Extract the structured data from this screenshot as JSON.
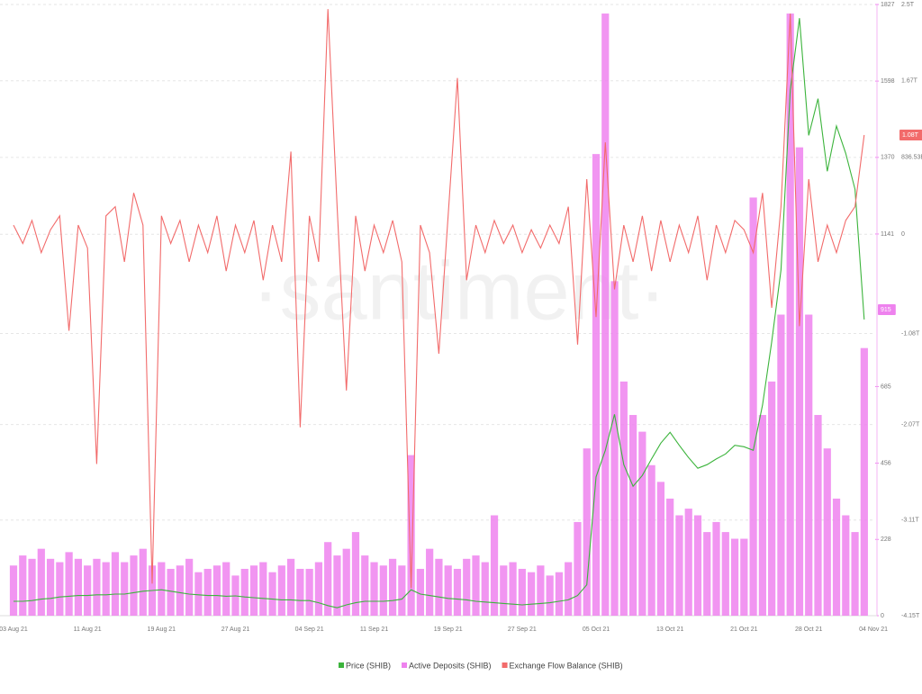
{
  "chart_data": {
    "type": "combo",
    "watermark": "·santiment·",
    "categories": [
      "03 Aug 21",
      null,
      null,
      null,
      null,
      null,
      null,
      null,
      "11 Aug 21",
      null,
      null,
      null,
      null,
      null,
      null,
      null,
      "19 Aug 21",
      null,
      null,
      null,
      null,
      null,
      null,
      null,
      "27 Aug 21",
      null,
      null,
      null,
      null,
      null,
      null,
      null,
      "04 Sep 21",
      null,
      null,
      null,
      null,
      null,
      null,
      "11 Sep 21",
      null,
      null,
      null,
      null,
      null,
      null,
      null,
      "19 Sep 21",
      null,
      null,
      null,
      null,
      null,
      null,
      null,
      "27 Sep 21",
      null,
      null,
      null,
      null,
      null,
      null,
      null,
      "05 Oct 21",
      null,
      null,
      null,
      null,
      null,
      null,
      null,
      "13 Oct 21",
      null,
      null,
      null,
      null,
      null,
      null,
      null,
      "21 Oct 21",
      null,
      null,
      null,
      null,
      null,
      null,
      "28 Oct 21",
      null,
      null,
      null,
      null,
      null,
      null,
      "04 Nov 21"
    ],
    "series": [
      {
        "name": "Price (SHIB)",
        "type": "line",
        "axis": "y3",
        "color": "#3cb43c",
        "values": [
          7e-06,
          7e-06,
          7.1e-06,
          7.3e-06,
          7.4e-06,
          7.6e-06,
          7.7e-06,
          7.8e-06,
          7.8e-06,
          7.9e-06,
          7.9e-06,
          8e-06,
          8e-06,
          8.2e-06,
          8.4e-06,
          8.5e-06,
          8.6e-06,
          8.4e-06,
          8.2e-06,
          8e-06,
          7.9e-06,
          7.8e-06,
          7.8e-06,
          7.7e-06,
          7.75e-06,
          7.6e-06,
          7.5e-06,
          7.4e-06,
          7.3e-06,
          7.2e-06,
          7.2e-06,
          7.1e-06,
          7.1e-06,
          6.8e-06,
          6.4e-06,
          6.1e-06,
          6.5e-06,
          6.8e-06,
          7e-06,
          7e-06,
          7e-06,
          7.1e-06,
          7.3e-06,
          8.6e-06,
          8e-06,
          7.8e-06,
          7.6e-06,
          7.4e-06,
          7.3e-06,
          7.2e-06,
          7e-06,
          6.9e-06,
          6.8e-06,
          6.7e-06,
          6.6e-06,
          6.5e-06,
          6.6e-06,
          6.7e-06,
          6.8e-06,
          7e-06,
          7.2e-06,
          7.8e-06,
          9.3e-06,
          2.43e-05,
          2.8e-05,
          3.3e-05,
          2.6e-05,
          2.3e-05,
          2.45e-05,
          2.68e-05,
          2.9e-05,
          3.05e-05,
          2.87e-05,
          2.7e-05,
          2.55e-05,
          2.6e-05,
          2.68e-05,
          2.75e-05,
          2.87e-05,
          2.85e-05,
          2.8e-05,
          3.43e-05,
          4.31e-05,
          5.31e-05,
          7.81e-05,
          8.81e-05,
          7.18e-05,
          7.69e-05,
          6.68e-05,
          7.31e-05,
          6.93e-05,
          6.43e-05,
          4.62e-05,
          null
        ]
      },
      {
        "name": "Active Deposits (SHIB)",
        "type": "bar",
        "axis": "y",
        "color": "#ee82ee",
        "values": [
          150,
          180,
          170,
          200,
          170,
          160,
          190,
          170,
          150,
          170,
          160,
          190,
          160,
          180,
          200,
          150,
          160,
          140,
          150,
          170,
          130,
          140,
          150,
          160,
          120,
          140,
          150,
          160,
          130,
          150,
          170,
          140,
          140,
          160,
          220,
          180,
          200,
          250,
          180,
          160,
          150,
          170,
          150,
          480,
          140,
          200,
          170,
          150,
          140,
          170,
          180,
          160,
          300,
          150,
          160,
          140,
          130,
          150,
          120,
          130,
          160,
          280,
          500,
          1380,
          1800,
          1000,
          700,
          600,
          550,
          450,
          400,
          350,
          300,
          320,
          300,
          250,
          280,
          250,
          230,
          230,
          1250,
          600,
          700,
          900,
          1800,
          1400,
          900,
          600,
          500,
          350,
          300,
          250,
          800,
          null
        ]
      },
      {
        "name": "Exchange Flow Balance (SHIB)",
        "type": "line",
        "axis": "y2",
        "color": "#f26b6b",
        "values": [
          100000000000.0,
          -100000000000.0,
          150000000000.0,
          -200000000000.0,
          50000000000.0,
          200000000000.0,
          -1050000000000.0,
          100000000000.0,
          -150000000000.0,
          -2500000000000.0,
          200000000000.0,
          300000000000.0,
          -300000000000.0,
          450000000000.0,
          100000000000.0,
          -3800000000000.0,
          200000000000.0,
          -100000000000.0,
          150000000000.0,
          -300000000000.0,
          100000000000.0,
          -200000000000.0,
          200000000000.0,
          -400000000000.0,
          100000000000.0,
          -200000000000.0,
          150000000000.0,
          -500000000000.0,
          100000000000.0,
          -300000000000.0,
          900000000000.0,
          -2100000000000.0,
          200000000000.0,
          -300000000000.0,
          2450000000000.0,
          300000000000.0,
          -1700000000000.0,
          200000000000.0,
          -400000000000.0,
          100000000000.0,
          -200000000000.0,
          150000000000.0,
          -300000000000.0,
          -3850000000000.0,
          100000000000.0,
          -200000000000.0,
          -1300000000000.0,
          200000000000.0,
          1700000000000.0,
          -500000000000.0,
          100000000000.0,
          -200000000000.0,
          150000000000.0,
          -100000000000.0,
          100000000000.0,
          -200000000000.0,
          50000000000.0,
          -150000000000.0,
          100000000000.0,
          -100000000000.0,
          300000000000.0,
          -1200000000000.0,
          600000000000.0,
          -900000000000.0,
          1000000000000.0,
          -600000000000.0,
          100000000000.0,
          -300000000000.0,
          200000000000.0,
          -400000000000.0,
          150000000000.0,
          -300000000000.0,
          100000000000.0,
          -200000000000.0,
          200000000000.0,
          -500000000000.0,
          100000000000.0,
          -200000000000.0,
          150000000000.0,
          50000000000.0,
          -200000000000.0,
          450000000000.0,
          -800000000000.0,
          300000000000.0,
          2400000000000.0,
          -1000000000000.0,
          600000000000.0,
          -300000000000.0,
          100000000000.0,
          -200000000000.0,
          150000000000.0,
          300000000000.0,
          1080000000000.0,
          null
        ]
      }
    ],
    "ylim": [
      0,
      1827
    ],
    "yticks": [
      0,
      228,
      456,
      685,
      1141,
      1370,
      1598,
      1827
    ],
    "y2lim": [
      -4150000000000.0,
      2500000000000.0
    ],
    "y2ticks": [
      {
        "value": -4150000000000.0,
        "label": "-4.15T"
      },
      {
        "value": -3110000000000.0,
        "label": "-3.11T"
      },
      {
        "value": -2070000000000.0,
        "label": "-2.07T"
      },
      {
        "value": -1080000000000.0,
        "label": "-1.08T"
      },
      0,
      {
        "value": 836530000000.0,
        "label": "836.53B"
      },
      {
        "value": 1670000000000.0,
        "label": "1.67T"
      },
      {
        "value": 2500000000000.0,
        "label": "2.5T"
      }
    ],
    "y3lim": [
      5e-06,
      9e-05
    ],
    "grid": true,
    "legend": "bottom",
    "annotations": [
      {
        "text": "915",
        "value": 915,
        "axis": "y",
        "color": "#ee82ee"
      },
      {
        "text": "1.08T",
        "value": 1080000000000.0,
        "axis": "y2",
        "color": "#f26b6b"
      }
    ]
  }
}
